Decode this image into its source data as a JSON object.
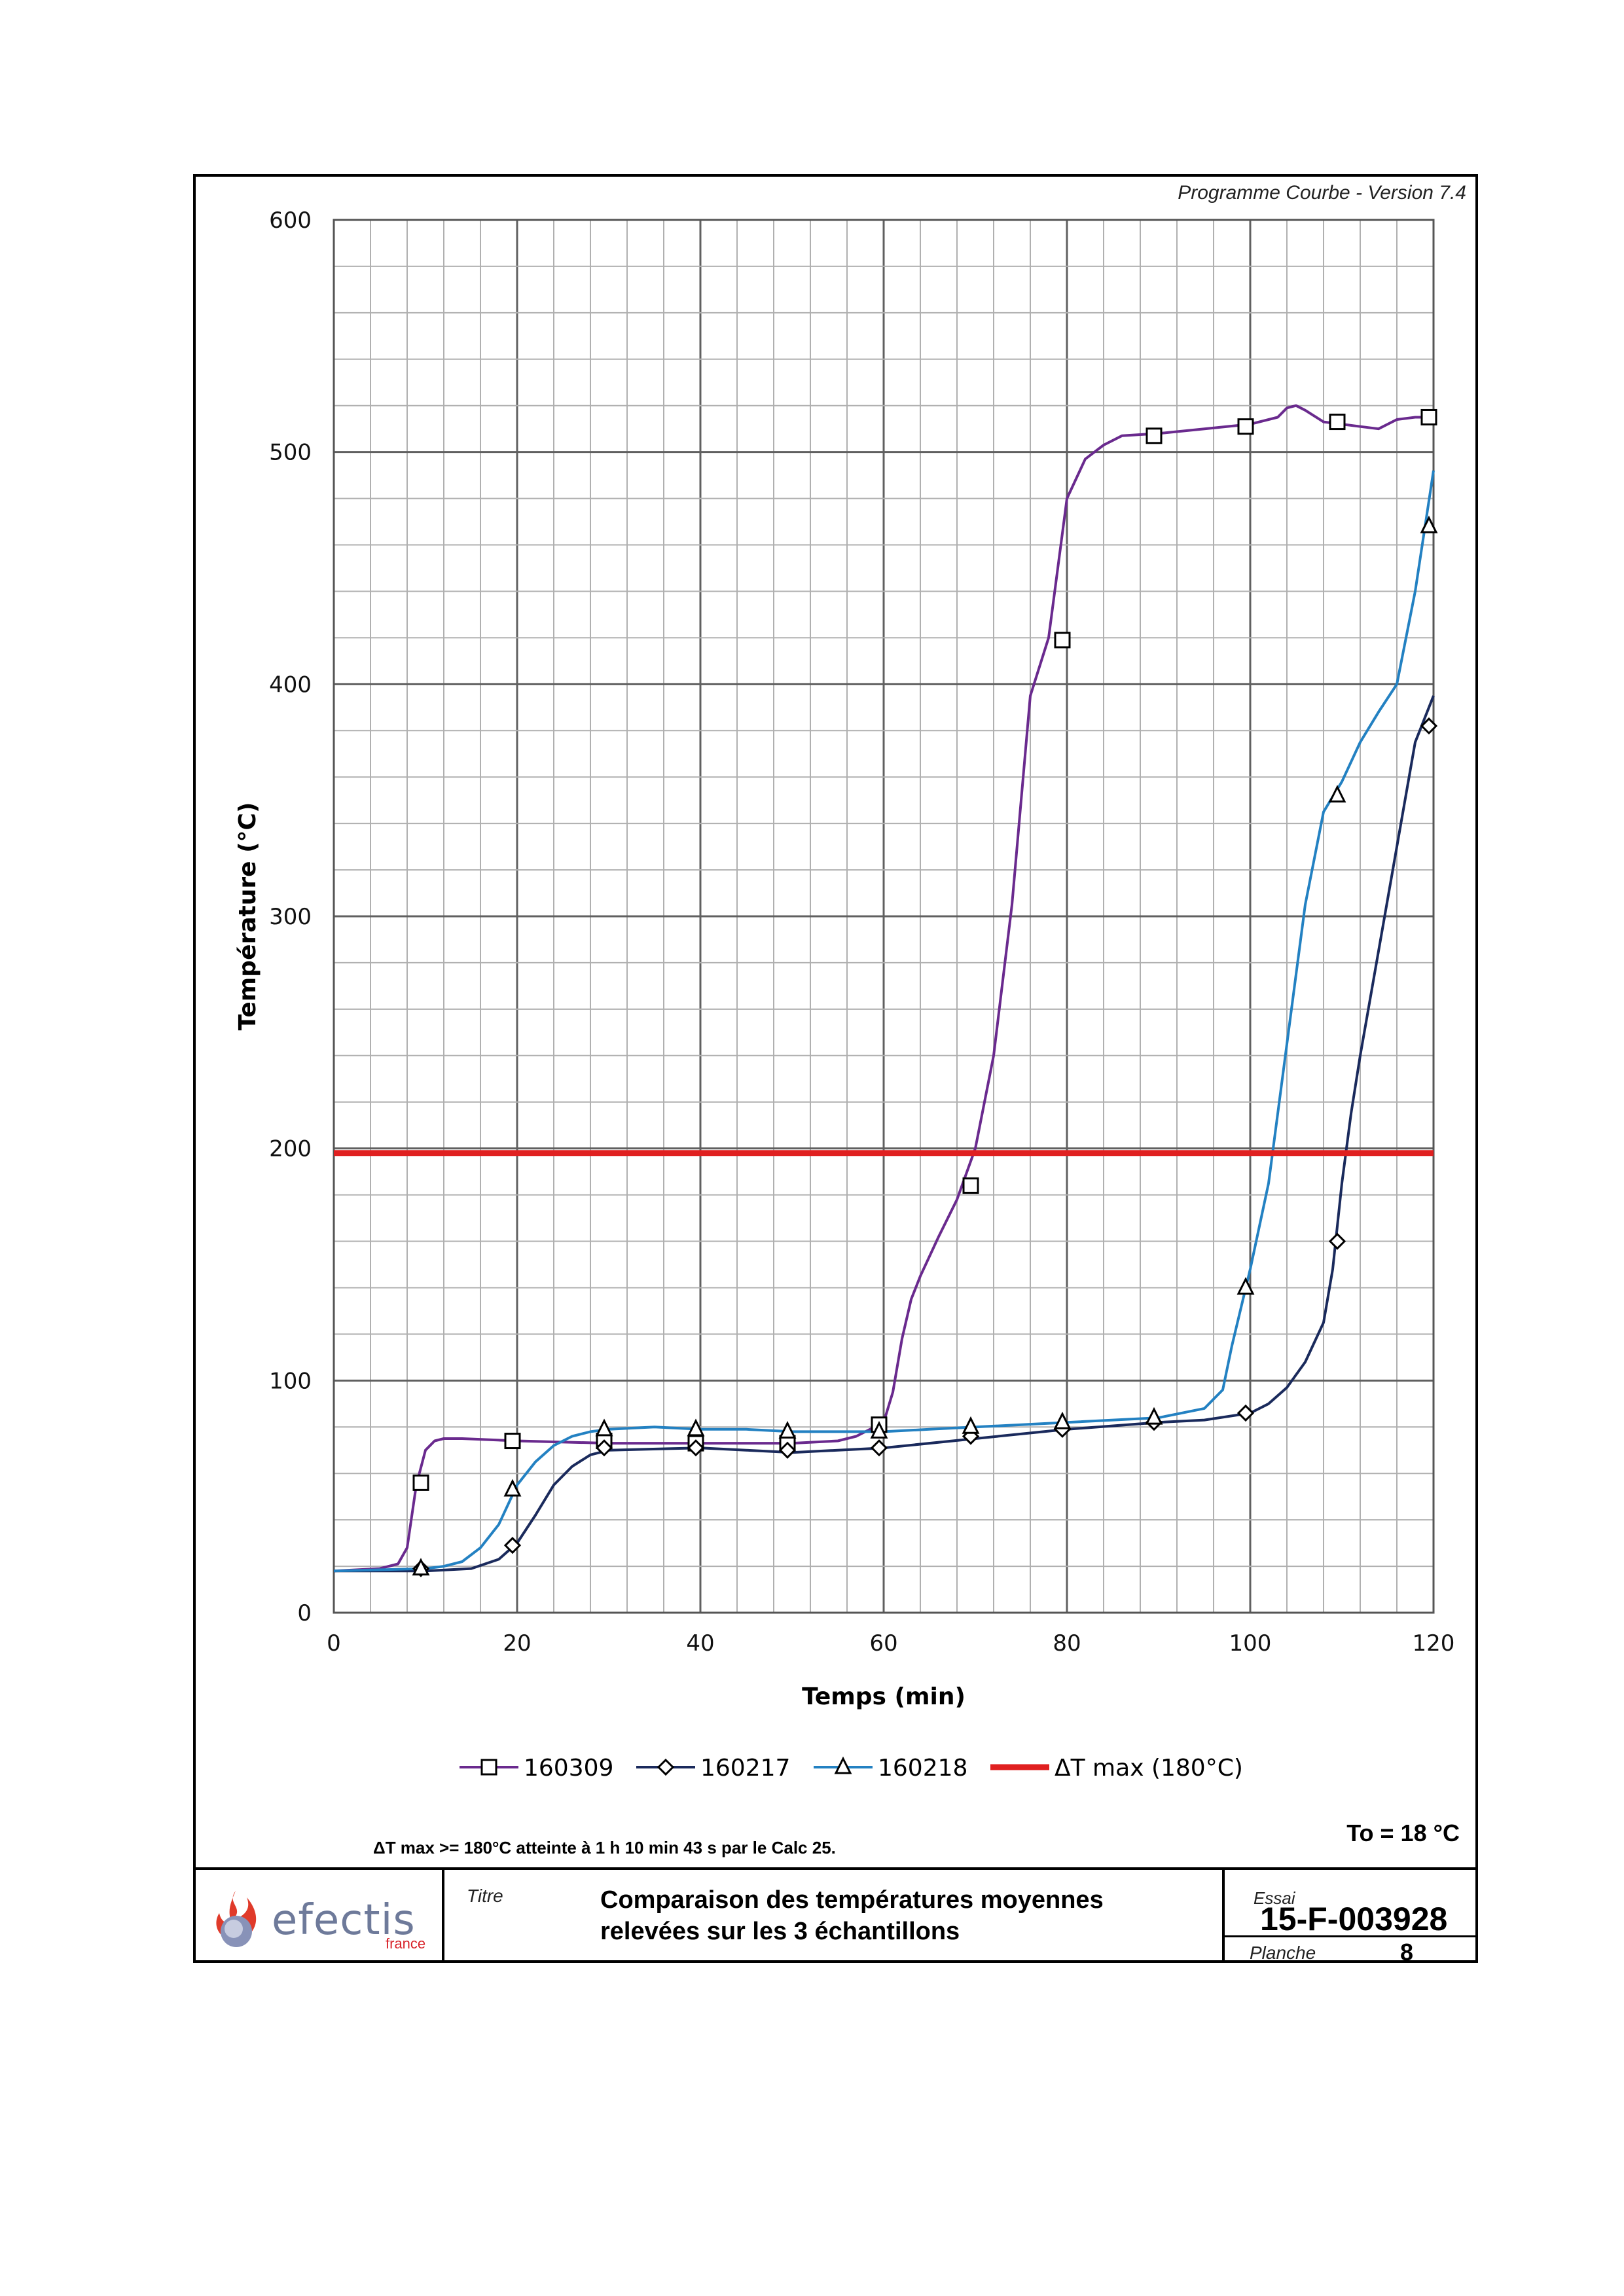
{
  "header": {
    "version": "Programme Courbe  - Version 7.4"
  },
  "chart_data": {
    "type": "line",
    "xlabel": "Temps (min)",
    "ylabel": "Température (°C)",
    "xlim": [
      0,
      120
    ],
    "ylim": [
      0,
      600
    ],
    "x_ticks": [
      0,
      20,
      40,
      60,
      80,
      100,
      120
    ],
    "y_ticks": [
      0,
      100,
      200,
      300,
      400,
      500,
      600
    ],
    "grid": true,
    "legend_position": "bottom",
    "series": [
      {
        "name": "160309",
        "color": "#6a2a8e",
        "marker": "square",
        "x": [
          0,
          5,
          7,
          8,
          9,
          10,
          11,
          12,
          14,
          20,
          30,
          40,
          50,
          55,
          57,
          60,
          61,
          62,
          63,
          64,
          66,
          68,
          70,
          72,
          74,
          76,
          78,
          80,
          82,
          84,
          86,
          90,
          95,
          100,
          103,
          104,
          105,
          106,
          108,
          110,
          112,
          114,
          116,
          118,
          120
        ],
        "y": [
          18,
          19,
          21,
          28,
          55,
          70,
          74,
          75,
          75,
          74,
          73,
          73,
          73,
          74,
          76,
          82,
          95,
          118,
          135,
          145,
          162,
          178,
          200,
          240,
          305,
          395,
          420,
          480,
          497,
          503,
          507,
          508,
          510,
          512,
          515,
          519,
          520,
          518,
          513,
          512,
          511,
          510,
          514,
          515,
          515
        ]
      },
      {
        "name": "160217",
        "color": "#1a2a5c",
        "marker": "diamond",
        "x": [
          0,
          10,
          15,
          18,
          20,
          22,
          24,
          26,
          28,
          30,
          40,
          45,
          50,
          55,
          60,
          70,
          80,
          90,
          95,
          100,
          102,
          104,
          106,
          108,
          109,
          110,
          111,
          112,
          114,
          116,
          118,
          120
        ],
        "y": [
          18,
          18,
          19,
          23,
          30,
          42,
          55,
          63,
          68,
          70,
          71,
          70,
          69,
          70,
          71,
          75,
          79,
          82,
          83,
          86,
          90,
          97,
          108,
          125,
          148,
          185,
          215,
          240,
          285,
          330,
          375,
          395
        ]
      },
      {
        "name": "160218",
        "color": "#2381c2",
        "marker": "triangle",
        "x": [
          0,
          10,
          12,
          14,
          16,
          18,
          20,
          22,
          24,
          26,
          28,
          30,
          35,
          40,
          45,
          50,
          55,
          60,
          65,
          70,
          80,
          90,
          95,
          97,
          98,
          100,
          102,
          104,
          106,
          108,
          110,
          112,
          114,
          116,
          118,
          120
        ],
        "y": [
          18,
          19,
          20,
          22,
          28,
          38,
          55,
          65,
          72,
          76,
          78,
          79,
          80,
          79,
          79,
          78,
          78,
          78,
          79,
          80,
          82,
          84,
          88,
          96,
          115,
          148,
          185,
          245,
          305,
          345,
          358,
          375,
          388,
          400,
          440,
          492
        ]
      },
      {
        "name": "ΔT max (180°C)",
        "color": "#e02020",
        "marker": "none",
        "x": [
          0,
          120
        ],
        "y": [
          198,
          198
        ]
      }
    ]
  },
  "markers": {
    "160309": [
      [
        9.5,
        56
      ],
      [
        19.5,
        74
      ],
      [
        29.5,
        74
      ],
      [
        39.5,
        73
      ],
      [
        49.5,
        73
      ],
      [
        59.5,
        81
      ],
      [
        69.5,
        184
      ],
      [
        79.5,
        419
      ],
      [
        89.5,
        507
      ],
      [
        99.5,
        511
      ],
      [
        109.5,
        513
      ],
      [
        119.5,
        515
      ]
    ],
    "160217": [
      [
        9.5,
        19
      ],
      [
        19.5,
        29
      ],
      [
        29.5,
        71
      ],
      [
        39.5,
        71
      ],
      [
        49.5,
        70
      ],
      [
        59.5,
        71
      ],
      [
        69.5,
        76
      ],
      [
        79.5,
        79
      ],
      [
        89.5,
        82
      ],
      [
        99.5,
        86
      ],
      [
        109.5,
        160
      ],
      [
        119.5,
        382
      ]
    ],
    "160218": [
      [
        9.5,
        19
      ],
      [
        19.5,
        53
      ],
      [
        29.5,
        79
      ],
      [
        39.5,
        79
      ],
      [
        49.5,
        78
      ],
      [
        59.5,
        78
      ],
      [
        69.5,
        80
      ],
      [
        79.5,
        82
      ],
      [
        89.5,
        84
      ],
      [
        99.5,
        140
      ],
      [
        109.5,
        352
      ],
      [
        119.5,
        468
      ]
    ]
  },
  "note": "ΔT max >= 180°C atteinte à 1 h 10 min 43 s  par le Calc 25.",
  "to_label": "To = 18 °C",
  "footer": {
    "logo_word": "efectis",
    "logo_sub": "france",
    "titre_label": "Titre",
    "titre_line1": "Comparaison des températures moyennes",
    "titre_line2": "relevées sur les 3 échantillons",
    "essai_label": "Essai",
    "essai_value": "15-F-003928",
    "planche_label": "Planche",
    "planche_value": "8"
  },
  "colors": {
    "grid_minor": "#b0b0b0",
    "grid_major": "#606060",
    "threshold": "#e02020"
  }
}
